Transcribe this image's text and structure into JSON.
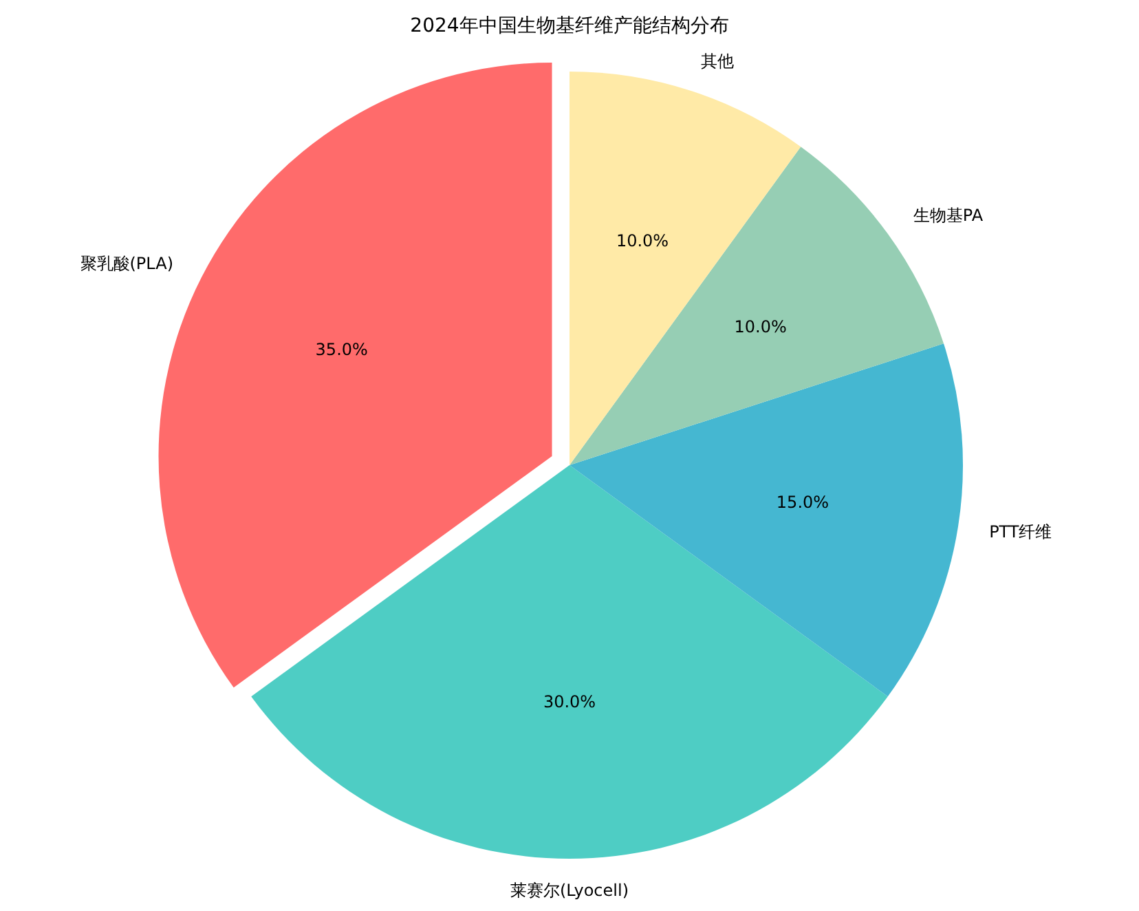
{
  "chart_data": {
    "type": "pie",
    "title": "2024年中国生物基纤维产能结构分布",
    "categories": [
      "聚乳酸(PLA)",
      "莱赛尔(Lyocell)",
      "PTT纤维",
      "生物基PA",
      "其他"
    ],
    "values": [
      35,
      30,
      15,
      10,
      10
    ],
    "colors": [
      "#ff6b6b",
      "#4ecdc4",
      "#45b7d1",
      "#96ceb4",
      "#ffeaa7"
    ],
    "value_labels": [
      "35.0%",
      "30.0%",
      "15.0%",
      "10.0%",
      "10.0%"
    ],
    "legend": false
  }
}
